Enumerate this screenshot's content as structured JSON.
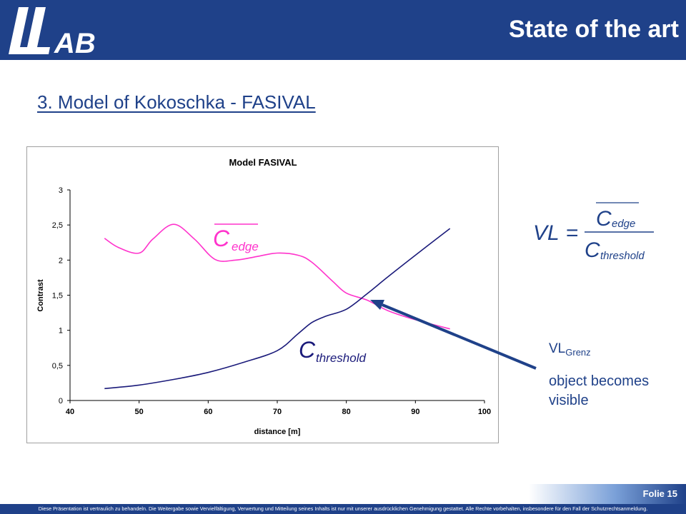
{
  "header": {
    "logo_text": "LLAB",
    "title": "State of the art",
    "background_color": "#1f4189"
  },
  "subtitle": "3. Model of Kokoschka - FASIVAL",
  "chart_data": {
    "type": "line",
    "title": "Model FASIVAL",
    "xlabel": "distance [m]",
    "ylabel": "Contrast",
    "xlim": [
      40,
      100
    ],
    "ylim": [
      0,
      3
    ],
    "xticks": [
      "40",
      "50",
      "60",
      "70",
      "80",
      "90",
      "100"
    ],
    "yticks": [
      "0",
      "0,5",
      "1",
      "1,5",
      "2",
      "2,5",
      "3"
    ],
    "grid": false,
    "series": [
      {
        "color": "#ff33cc",
        "label": {
          "main": "C",
          "sub": "edge",
          "overline": true
        },
        "x": [
          45,
          47,
          50,
          52,
          55,
          58,
          61,
          64,
          67,
          70,
          73,
          75,
          78,
          80,
          83,
          86,
          90,
          95
        ],
        "y": [
          2.31,
          2.18,
          2.1,
          2.3,
          2.51,
          2.3,
          2.01,
          2.0,
          2.05,
          2.1,
          2.07,
          1.97,
          1.7,
          1.53,
          1.43,
          1.28,
          1.15,
          1.02
        ]
      },
      {
        "color": "#1a1a7a",
        "label": {
          "main": "C",
          "sub": "threshold",
          "overline": false
        },
        "x": [
          45,
          50,
          55,
          60,
          65,
          70,
          73,
          75,
          77,
          80,
          83,
          86,
          90,
          95
        ],
        "y": [
          0.17,
          0.22,
          0.3,
          0.4,
          0.54,
          0.71,
          0.95,
          1.11,
          1.2,
          1.3,
          1.52,
          1.76,
          2.07,
          2.45
        ]
      }
    ]
  },
  "formula": {
    "lhs": "VL",
    "equals": "=",
    "numerator": "C",
    "numerator_sub": "edge",
    "denominator": "C",
    "denominator_sub": "threshold"
  },
  "annotation": {
    "vl_label": "VL",
    "vl_sub": "Grenz",
    "text": "object becomes visible"
  },
  "footer": {
    "page": "Folie 15",
    "disclaimer": "Diese Präsentation ist vertraulich zu behandeln. Die Weitergabe sowie Vervielfältigung, Verwertung und Mitteilung seines Inhalts ist nur mit unserer ausdrücklichen Genehmigung gestattet. Alle Rechte vorbehalten, insbesondere für den Fall der Schutzrechtsanmeldung."
  }
}
